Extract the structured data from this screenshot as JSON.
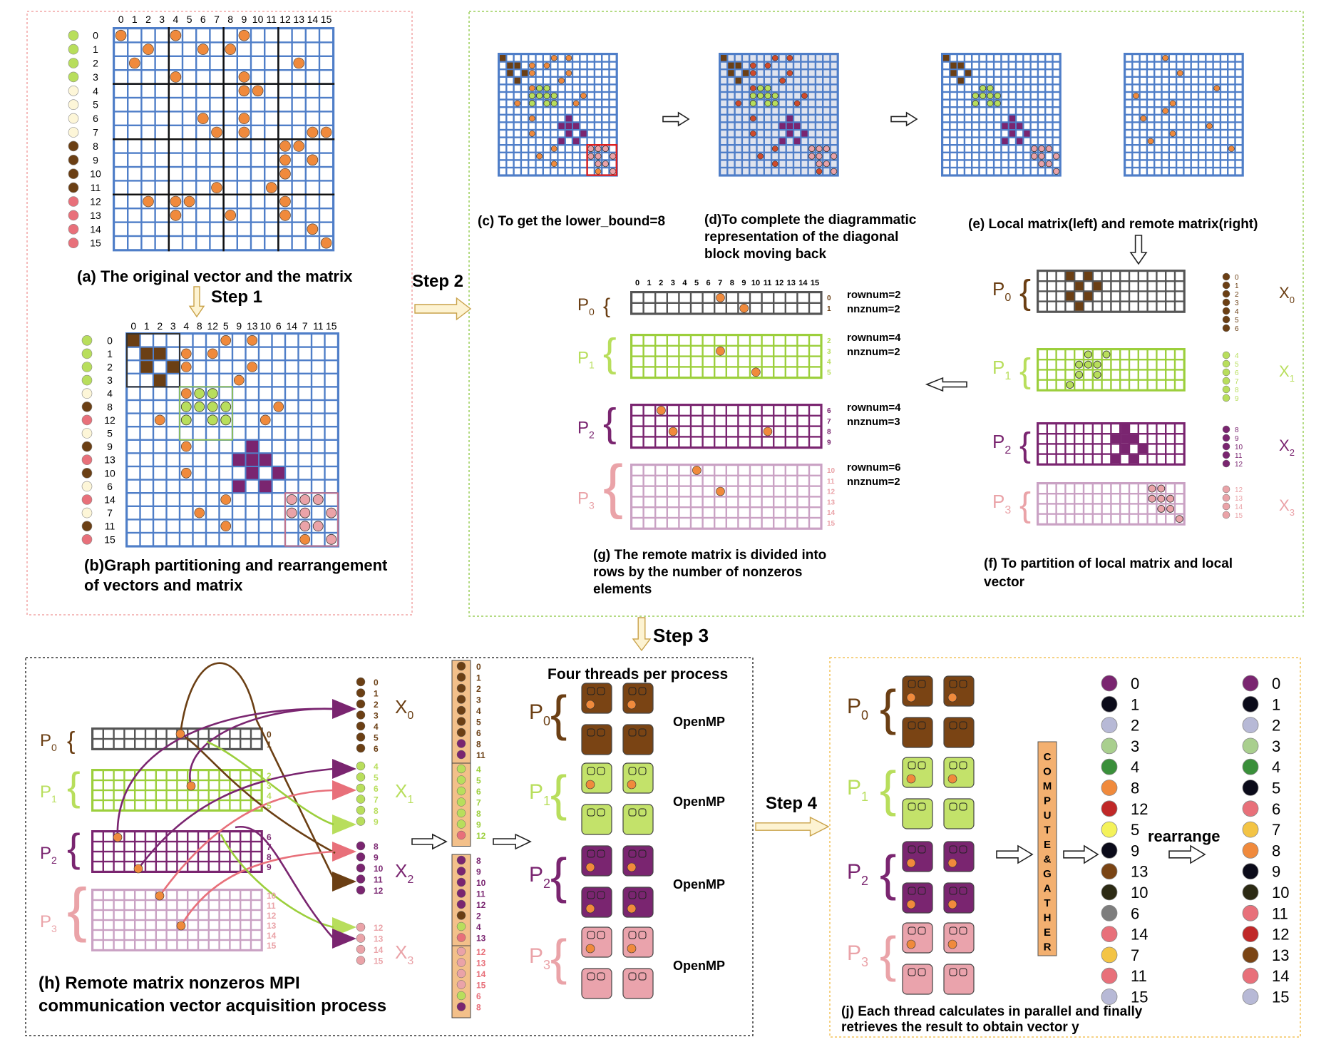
{
  "colors": {
    "grid_border": "#4f7ec8",
    "dark_border": "#222222",
    "orange": "#f08a3c",
    "brown": "#6b3f14",
    "green": "#b8de5c",
    "purple": "#7a2570",
    "pink": "#eaa3a8",
    "red_box": "#e02020",
    "panel_a_border": "#f2a6a6",
    "panel_cg_border": "#9ccf5a",
    "panel_h_border": "#333333",
    "panel_j_border": "#f3c45c"
  },
  "panel_a": {
    "caption": "(a) The original vector and the matrix",
    "col_labels": [
      "0",
      "1",
      "2",
      "3",
      "4",
      "5",
      "6",
      "7",
      "8",
      "9",
      "10",
      "11",
      "12",
      "13",
      "14",
      "15"
    ],
    "row_labels": [
      "0",
      "1",
      "2",
      "3",
      "4",
      "5",
      "6",
      "7",
      "8",
      "9",
      "10",
      "11",
      "12",
      "13",
      "14",
      "15"
    ]
  },
  "step1_label": "Step 1",
  "step2_label": "Step 2",
  "step3_label": "Step 3",
  "step4_label": "Step 4",
  "panel_b": {
    "caption_line1": "(b)Graph partitioning and rearrangement",
    "caption_line2": "of vectors and matrix",
    "col_labels": [
      "0",
      "1",
      "2",
      "3",
      "4",
      "8",
      "12",
      "5",
      "9",
      "13",
      "10",
      "6",
      "14",
      "7",
      "11",
      "15"
    ],
    "row_labels": [
      "0",
      "1",
      "2",
      "3",
      "4",
      "8",
      "12",
      "5",
      "9",
      "13",
      "10",
      "6",
      "14",
      "7",
      "11",
      "15"
    ]
  },
  "panel_c": {
    "caption": "(c) To get  the lower_bound=8"
  },
  "panel_d": {
    "caption_line1": "(d)To complete the diagrammatic",
    "caption_line2": "representation of the diagonal",
    "caption_line3": "block moving back"
  },
  "panel_e": {
    "caption": "(e)  Local  matrix(left) and remote matrix(right)"
  },
  "panel_f": {
    "caption_line1": "(f) To partition of local matrix and local",
    "caption_line2": "vector",
    "procs": [
      {
        "p": "P",
        "sub": "0",
        "x": "X",
        "xsub": "0",
        "labels": [
          "0",
          "1",
          "2",
          "3",
          "4",
          "5",
          "6"
        ]
      },
      {
        "p": "P",
        "sub": "1",
        "x": "X",
        "xsub": "1",
        "labels": [
          "4",
          "5",
          "6",
          "7",
          "8",
          "9"
        ]
      },
      {
        "p": "P",
        "sub": "2",
        "x": "X",
        "xsub": "2",
        "labels": [
          "8",
          "9",
          "10",
          "11",
          "12"
        ]
      },
      {
        "p": "P",
        "sub": "3",
        "x": "X",
        "xsub": "3",
        "labels": [
          "12",
          "13",
          "14",
          "15"
        ]
      }
    ]
  },
  "panel_g": {
    "caption_line1": "(g) The remote matrix is divided into",
    "caption_line2": "rows  by the number of nonzeros",
    "caption_line3": "elements",
    "col_labels": [
      "0",
      "1",
      "2",
      "3",
      "4",
      "5",
      "6",
      "7",
      "8",
      "9",
      "10",
      "11",
      "12",
      "13",
      "14",
      "15"
    ],
    "procs": [
      {
        "p": "P",
        "sub": "0",
        "rows": [
          "0",
          "1"
        ],
        "rownum": "rownum=2",
        "nnznum": "nnznum=2"
      },
      {
        "p": "P",
        "sub": "1",
        "rows": [
          "2",
          "3",
          "4",
          "5"
        ],
        "rownum": "rownum=4",
        "nnznum": "nnznum=2"
      },
      {
        "p": "P",
        "sub": "2",
        "rows": [
          "6",
          "7",
          "8",
          "9"
        ],
        "rownum": "rownum=4",
        "nnznum": "nnznum=3"
      },
      {
        "p": "P",
        "sub": "3",
        "rows": [
          "10",
          "11",
          "12",
          "13",
          "14",
          "15"
        ],
        "rownum": "rownum=6",
        "nnznum": "nnznum=2"
      }
    ]
  },
  "panel_h": {
    "caption_line1": "(h) Remote matrix nonzeros  MPI",
    "caption_line2": "communication vector acquisition process",
    "procs": [
      {
        "p": "P",
        "sub": "0",
        "rows": [
          "0",
          "1"
        ]
      },
      {
        "p": "P",
        "sub": "1",
        "rows": [
          "2",
          "3",
          "4",
          "5"
        ]
      },
      {
        "p": "P",
        "sub": "2",
        "rows": [
          "6",
          "7",
          "8",
          "9"
        ]
      },
      {
        "p": "P",
        "sub": "3",
        "rows": [
          "10",
          "11",
          "12",
          "13",
          "14",
          "15"
        ]
      }
    ],
    "x_groups": [
      {
        "x": "X",
        "xsub": "0",
        "labels": [
          "0",
          "1",
          "2",
          "3",
          "4",
          "5",
          "6"
        ]
      },
      {
        "x": "X",
        "xsub": "1",
        "labels": [
          "4",
          "5",
          "6",
          "7",
          "8",
          "9"
        ]
      },
      {
        "x": "X",
        "xsub": "2",
        "labels": [
          "8",
          "9",
          "10",
          "11",
          "12"
        ]
      },
      {
        "x": "X",
        "xsub": "3",
        "labels": [
          "12",
          "13",
          "14",
          "15"
        ]
      }
    ],
    "gathered": [
      [
        "0",
        "1",
        "2",
        "3",
        "4",
        "5",
        "6",
        "8",
        "11"
      ],
      [
        "4",
        "5",
        "6",
        "7",
        "8",
        "9",
        "12"
      ],
      [
        "8",
        "9",
        "10",
        "11",
        "12",
        "2",
        "4",
        "13"
      ],
      [
        "12",
        "13",
        "14",
        "15",
        "6",
        "8"
      ]
    ]
  },
  "threads": {
    "title": "Four threads per process",
    "openmp": "OpenMP",
    "procs": [
      "0",
      "1",
      "2",
      "3"
    ]
  },
  "panel_j": {
    "caption_line1": "(j) Each thread calculates in parallel and finally",
    "caption_line2": "retrieves the result to obtain vector y",
    "compute_gather": [
      "C",
      "O",
      "M",
      "P",
      "U",
      "T",
      "E",
      "&",
      "G",
      "A",
      "T",
      "H",
      "E",
      "R"
    ],
    "rearrange": "rearrange",
    "left_labels": [
      "0",
      "1",
      "2",
      "3",
      "4",
      "8",
      "12",
      "5",
      "9",
      "13",
      "10",
      "6",
      "14",
      "7",
      "11",
      "15"
    ],
    "left_colors": [
      "#7a2570",
      "#0b0b1a",
      "#b7b9d6",
      "#a9cf8e",
      "#3a8f3a",
      "#f08a3c",
      "#c02828",
      "#f4f25a",
      "#0b0b1a",
      "#7a4414",
      "#2c2a14",
      "#7d7d7d",
      "#e8707a",
      "#f3c445",
      "#e8707a",
      "#b7b9d6"
    ],
    "right_labels": [
      "0",
      "1",
      "2",
      "3",
      "4",
      "5",
      "6",
      "7",
      "8",
      "9",
      "10",
      "11",
      "12",
      "13",
      "14",
      "15"
    ],
    "right_colors": [
      "#7a2570",
      "#0b0b1a",
      "#b7b9d6",
      "#a9cf8e",
      "#3a8f3a",
      "#0b0b1a",
      "#e8707a",
      "#f3c445",
      "#f08a3c",
      "#0b0b1a",
      "#2c2a14",
      "#e8707a",
      "#c02828",
      "#7a4414",
      "#e8707a",
      "#b7b9d6"
    ]
  }
}
